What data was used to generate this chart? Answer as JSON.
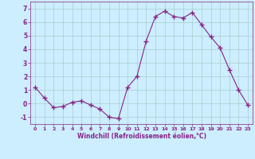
{
  "x": [
    0,
    1,
    2,
    3,
    4,
    5,
    6,
    7,
    8,
    9,
    10,
    11,
    12,
    13,
    14,
    15,
    16,
    17,
    18,
    19,
    20,
    21,
    22,
    23
  ],
  "y": [
    1.2,
    0.4,
    -0.3,
    -0.2,
    0.1,
    0.2,
    -0.1,
    -0.4,
    -1.0,
    -1.1,
    1.2,
    2.0,
    4.6,
    6.4,
    6.8,
    6.4,
    6.3,
    6.7,
    5.8,
    4.9,
    4.1,
    2.5,
    1.0,
    -0.1
  ],
  "line_color": "#882288",
  "marker": "+",
  "marker_size": 4,
  "bg_color": "#cceeff",
  "grid_color": "#aacccc",
  "xlabel": "Windchill (Refroidissement éolien,°C)",
  "xlabel_color": "#882288",
  "tick_color": "#882288",
  "ylim": [
    -1.5,
    7.5
  ],
  "yticks": [
    -1,
    0,
    1,
    2,
    3,
    4,
    5,
    6,
    7
  ],
  "xlim": [
    -0.5,
    23.5
  ],
  "xticks": [
    0,
    1,
    2,
    3,
    4,
    5,
    6,
    7,
    8,
    9,
    10,
    11,
    12,
    13,
    14,
    15,
    16,
    17,
    18,
    19,
    20,
    21,
    22,
    23
  ]
}
